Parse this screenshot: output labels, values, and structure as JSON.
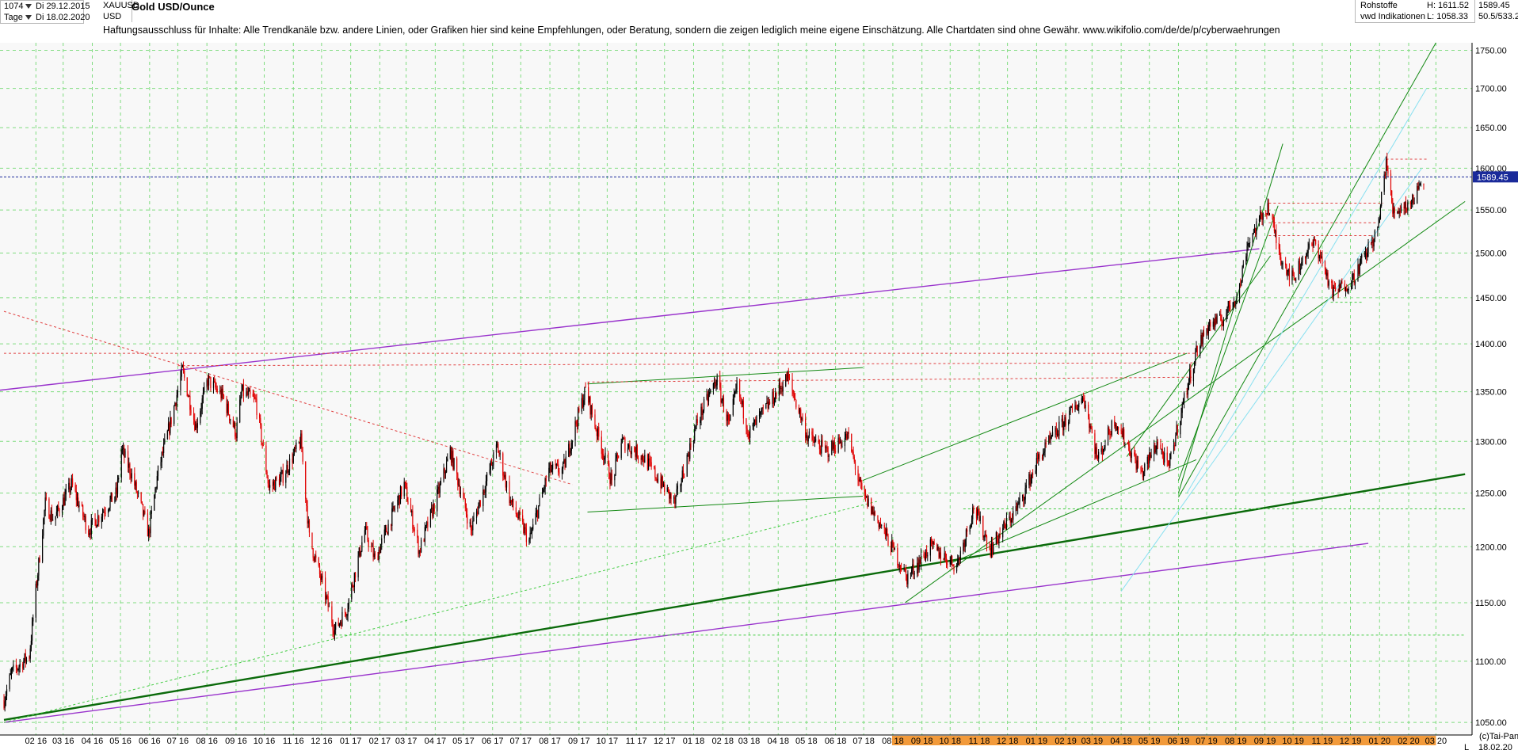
{
  "header": {
    "period_value": "1074",
    "from_date": "Di 29.12.2015",
    "interval": "Tage",
    "to_date": "Di 18.02.2020",
    "symbol": "XAUUSD",
    "currency": "USD",
    "title": "Gold USD/Ounce",
    "disclaimer": "Haftungsausschluss für Inhalte: Alle Trendkanäle bzw. andere Linien, oder Grafiken hier sind keine Empfehlungen, oder Beratung, sondern die zeigen lediglich meine eigene Einschätzung. Alle Chartdaten sind ohne Gewähr.  www.wikifolio.com/de/de/p/cyberwaehrungen",
    "category": "Rohstoffe",
    "source": "vwd Indikationen",
    "high": "H:  1611.52",
    "low": "L:  1058.33",
    "last_price": "1589.45",
    "ratio": "50.5/533.2"
  },
  "footer": {
    "copyright": "(c)Tai-Pan",
    "scale_mode": "L",
    "end_date": "18.02.20"
  },
  "colors": {
    "up_candle": "#000000",
    "down_candle": "#e00000",
    "grid": "#7fdc7f",
    "purple_line": "#9933cc",
    "green_line": "#118811",
    "dark_green_line": "#0a6a0a",
    "light_green_line": "#44cc44",
    "cyan_line": "#88e0f0",
    "red_dotted": "#e04040",
    "price_marker": "#1a2a9a"
  },
  "chart_data": {
    "type": "candlestick",
    "title": "Gold USD/Ounce",
    "y_scale": "log",
    "ylim": [
      1040,
      1760
    ],
    "y_ticks": [
      1050,
      1100,
      1150,
      1200,
      1250,
      1300,
      1350,
      1400,
      1450,
      1500,
      1550,
      1600,
      1650,
      1700,
      1750
    ],
    "y_tick_labels": [
      "1050.00",
      "1100.00",
      "1150.00",
      "1200.00",
      "1250.00",
      "1300.00",
      "1350.00",
      "1400.00",
      "1450.00",
      "1500.00",
      "1550.00",
      "1600.00",
      "1650.00",
      "1700.00",
      "1750.00"
    ],
    "x_range": [
      "2015-12-29",
      "2020-03-31"
    ],
    "x_tick_labels": [
      "02 16",
      "03 16",
      "04 16",
      "05 16",
      "06 16",
      "07 16",
      "08 16",
      "09 16",
      "10 16",
      "11 16",
      "12 16",
      "01 17",
      "02 17",
      "03 17",
      "04 17",
      "05 17",
      "06 17",
      "07 17",
      "08 17",
      "09 17",
      "10 17",
      "11 17",
      "12 17",
      "01 18",
      "02 18",
      "03 18",
      "04 18",
      "05 18",
      "06 18",
      "07 18",
      "08 18",
      "09 18",
      "10 18",
      "11 18",
      "12 18",
      "01 19",
      "02 19",
      "03 19",
      "04 19",
      "05 19",
      "06 19",
      "07 19",
      "08 19",
      "09 19",
      "10 19",
      "11 19",
      "12 19",
      "01 20",
      "02 20",
      "03 20"
    ],
    "x_tick_dates": [
      "2016-02-01",
      "2016-03-01",
      "2016-04-01",
      "2016-05-01",
      "2016-06-01",
      "2016-07-01",
      "2016-08-01",
      "2016-09-01",
      "2016-10-01",
      "2016-11-01",
      "2016-12-01",
      "2017-01-01",
      "2017-02-01",
      "2017-03-01",
      "2017-04-01",
      "2017-05-01",
      "2017-06-01",
      "2017-07-01",
      "2017-08-01",
      "2017-09-01",
      "2017-10-01",
      "2017-11-01",
      "2017-12-01",
      "2018-01-01",
      "2018-02-01",
      "2018-03-01",
      "2018-04-01",
      "2018-05-01",
      "2018-06-01",
      "2018-07-01",
      "2018-08-01",
      "2018-09-01",
      "2018-10-01",
      "2018-11-01",
      "2018-12-01",
      "2019-01-01",
      "2019-02-01",
      "2019-03-01",
      "2019-04-01",
      "2019-05-01",
      "2019-06-01",
      "2019-07-01",
      "2019-08-01",
      "2019-09-01",
      "2019-10-01",
      "2019-11-01",
      "2019-12-01",
      "2020-01-01",
      "2020-02-01",
      "2020-03-01"
    ],
    "last_price": 1589.45,
    "high": 1611.52,
    "low": 1058.33,
    "price_path": [
      [
        "2015-12-29",
        1068
      ],
      [
        "2016-01-06",
        1090
      ],
      [
        "2016-01-25",
        1105
      ],
      [
        "2016-02-11",
        1240
      ],
      [
        "2016-02-20",
        1225
      ],
      [
        "2016-03-10",
        1258
      ],
      [
        "2016-03-28",
        1215
      ],
      [
        "2016-04-14",
        1235
      ],
      [
        "2016-04-27",
        1250
      ],
      [
        "2016-05-02",
        1292
      ],
      [
        "2016-05-12",
        1270
      ],
      [
        "2016-05-31",
        1212
      ],
      [
        "2016-06-10",
        1270
      ],
      [
        "2016-06-24",
        1322
      ],
      [
        "2016-07-06",
        1372
      ],
      [
        "2016-07-20",
        1315
      ],
      [
        "2016-08-02",
        1362
      ],
      [
        "2016-08-18",
        1345
      ],
      [
        "2016-09-01",
        1308
      ],
      [
        "2016-09-07",
        1350
      ],
      [
        "2016-09-22",
        1340
      ],
      [
        "2016-10-06",
        1255
      ],
      [
        "2016-10-20",
        1265
      ],
      [
        "2016-11-09",
        1300
      ],
      [
        "2016-11-18",
        1208
      ],
      [
        "2016-12-15",
        1126
      ],
      [
        "2016-12-28",
        1145
      ],
      [
        "2017-01-16",
        1215
      ],
      [
        "2017-01-27",
        1188
      ],
      [
        "2017-02-27",
        1258
      ],
      [
        "2017-03-15",
        1196
      ],
      [
        "2017-04-06",
        1255
      ],
      [
        "2017-04-17",
        1290
      ],
      [
        "2017-05-09",
        1215
      ],
      [
        "2017-06-06",
        1295
      ],
      [
        "2017-06-20",
        1242
      ],
      [
        "2017-07-10",
        1205
      ],
      [
        "2017-07-31",
        1272
      ],
      [
        "2017-08-15",
        1272
      ],
      [
        "2017-09-08",
        1352
      ],
      [
        "2017-09-20",
        1310
      ],
      [
        "2017-10-06",
        1260
      ],
      [
        "2017-10-16",
        1300
      ],
      [
        "2017-11-08",
        1285
      ],
      [
        "2017-12-12",
        1240
      ],
      [
        "2018-01-05",
        1320
      ],
      [
        "2018-01-25",
        1362
      ],
      [
        "2018-02-08",
        1315
      ],
      [
        "2018-02-16",
        1355
      ],
      [
        "2018-03-01",
        1308
      ],
      [
        "2018-04-11",
        1365
      ],
      [
        "2018-05-02",
        1305
      ],
      [
        "2018-05-22",
        1290
      ],
      [
        "2018-06-14",
        1305
      ],
      [
        "2018-06-29",
        1250
      ],
      [
        "2018-07-19",
        1220
      ],
      [
        "2018-08-16",
        1172
      ],
      [
        "2018-09-10",
        1200
      ],
      [
        "2018-10-08",
        1183
      ],
      [
        "2018-10-26",
        1236
      ],
      [
        "2018-11-13",
        1198
      ],
      [
        "2018-12-14",
        1240
      ],
      [
        "2019-01-04",
        1285
      ],
      [
        "2019-01-31",
        1320
      ],
      [
        "2019-02-20",
        1345
      ],
      [
        "2019-03-07",
        1282
      ],
      [
        "2019-03-25",
        1322
      ],
      [
        "2019-04-23",
        1268
      ],
      [
        "2019-05-10",
        1300
      ],
      [
        "2019-05-21",
        1272
      ],
      [
        "2019-06-03",
        1327
      ],
      [
        "2019-06-20",
        1392
      ],
      [
        "2019-07-03",
        1420
      ],
      [
        "2019-07-17",
        1425
      ],
      [
        "2019-08-05",
        1460
      ],
      [
        "2019-08-13",
        1510
      ],
      [
        "2019-09-04",
        1555
      ],
      [
        "2019-09-17",
        1498
      ],
      [
        "2019-10-01",
        1470
      ],
      [
        "2019-10-14",
        1500
      ],
      [
        "2019-10-25",
        1512
      ],
      [
        "2019-11-12",
        1455
      ],
      [
        "2019-12-03",
        1470
      ],
      [
        "2019-12-30",
        1525
      ],
      [
        "2020-01-08",
        1610
      ],
      [
        "2020-01-15",
        1548
      ],
      [
        "2020-02-05",
        1560
      ],
      [
        "2020-02-14",
        1585
      ],
      [
        "2020-02-18",
        1589.45
      ]
    ],
    "trendlines": [
      {
        "kind": "purple",
        "points": [
          [
            "2015-12-10",
            1350
          ],
          [
            "2019-08-26",
            1505
          ]
        ]
      },
      {
        "kind": "purple",
        "points": [
          [
            "2015-12-29",
            1050
          ],
          [
            "2019-12-20",
            1203
          ]
        ]
      },
      {
        "kind": "dark-green",
        "points": [
          [
            "2015-12-29",
            1052
          ],
          [
            "2020-04-01",
            1268
          ]
        ]
      },
      {
        "kind": "green",
        "points": [
          [
            "2018-08-14",
            1150
          ],
          [
            "2020-04-01",
            1560
          ]
        ]
      },
      {
        "kind": "green",
        "points": [
          [
            "2018-06-30",
            1262
          ],
          [
            "2019-06-10",
            1390
          ]
        ]
      },
      {
        "kind": "green",
        "points": [
          [
            "2018-10-01",
            1185
          ],
          [
            "2019-06-20",
            1282
          ]
        ]
      },
      {
        "kind": "green",
        "points": [
          [
            "2019-06-01",
            1246
          ],
          [
            "2020-03-01",
            1760
          ]
        ]
      },
      {
        "kind": "green",
        "points": [
          [
            "2017-09-10",
            1358
          ],
          [
            "2018-06-30",
            1375
          ]
        ]
      },
      {
        "kind": "green",
        "points": [
          [
            "2017-09-10",
            1232
          ],
          [
            "2018-06-30",
            1247
          ]
        ]
      },
      {
        "kind": "green",
        "points": [
          [
            "2019-06-01",
            1250
          ],
          [
            "2019-09-20",
            1630
          ]
        ]
      },
      {
        "kind": "green",
        "points": [
          [
            "2019-06-01",
            1262
          ],
          [
            "2019-09-15",
            1555
          ]
        ]
      },
      {
        "kind": "green",
        "points": [
          [
            "2019-09-07",
            1497
          ],
          [
            "2019-04-07",
            1285
          ]
        ]
      },
      {
        "kind": "light-green-dashed",
        "points": [
          [
            "2015-12-29",
            1050
          ],
          [
            "2018-07-15",
            1242
          ]
        ]
      },
      {
        "kind": "light-green-dashed",
        "points": [
          [
            "2018-10-15",
            1235
          ],
          [
            "2020-04-01",
            1235
          ]
        ]
      },
      {
        "kind": "light-green-dashed",
        "points": [
          [
            "2016-12-10",
            1122
          ],
          [
            "2020-04-01",
            1122
          ]
        ]
      },
      {
        "kind": "light-green-dashed",
        "points": [
          [
            "2019-11-10",
            1445
          ],
          [
            "2019-12-15",
            1445
          ]
        ]
      },
      {
        "kind": "cyan",
        "points": [
          [
            "2019-04-01",
            1160
          ],
          [
            "2020-02-15",
            1600
          ]
        ]
      },
      {
        "kind": "cyan",
        "points": [
          [
            "2019-06-10",
            1250
          ],
          [
            "2020-02-20",
            1700
          ]
        ]
      },
      {
        "kind": "red-dashed",
        "points": [
          [
            "2015-12-29",
            1435
          ],
          [
            "2017-08-25",
            1258
          ]
        ]
      },
      {
        "kind": "red-dashed",
        "points": [
          [
            "2015-12-29",
            1390
          ],
          [
            "2019-06-20",
            1390
          ]
        ]
      },
      {
        "kind": "red-dashed",
        "points": [
          [
            "2016-07-01",
            1377
          ],
          [
            "2019-06-20",
            1380
          ]
        ]
      },
      {
        "kind": "red-dashed",
        "points": [
          [
            "2017-09-10",
            1360
          ],
          [
            "2019-06-15",
            1365
          ]
        ]
      },
      {
        "kind": "red-dashed",
        "points": [
          [
            "2019-09-05",
            1558
          ],
          [
            "2020-01-05",
            1558
          ]
        ]
      },
      {
        "kind": "red-dashed",
        "points": [
          [
            "2019-09-05",
            1535
          ],
          [
            "2019-12-30",
            1535
          ]
        ]
      },
      {
        "kind": "red-dashed",
        "points": [
          [
            "2019-09-05",
            1520
          ],
          [
            "2019-12-25",
            1520
          ]
        ]
      },
      {
        "kind": "red-dashed",
        "points": [
          [
            "2020-01-08",
            1611
          ],
          [
            "2020-02-20",
            1611
          ]
        ]
      }
    ]
  }
}
